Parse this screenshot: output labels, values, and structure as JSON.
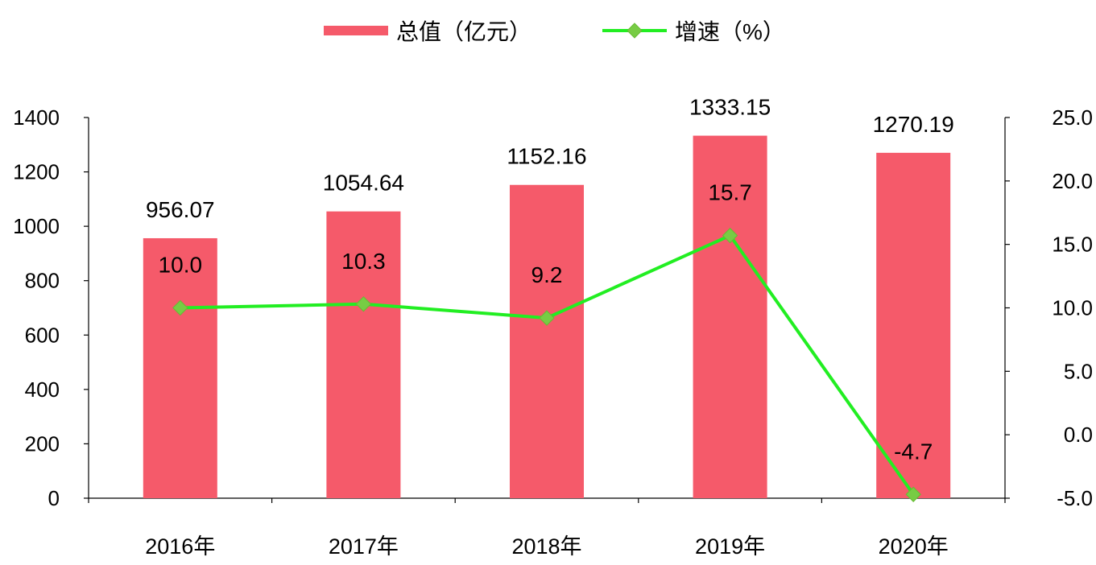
{
  "chart_data": {
    "type": "bar+line",
    "categories": [
      "2016年",
      "2017年",
      "2018年",
      "2019年",
      "2020年"
    ],
    "series": [
      {
        "name": "总值（亿元）",
        "type": "bar",
        "axis": "left",
        "values": [
          956.07,
          1054.64,
          1152.16,
          1333.15,
          1270.19
        ],
        "labels": [
          "956.07",
          "1054.64",
          "1152.16",
          "1333.15",
          "1270.19"
        ],
        "color": "#f55a6a"
      },
      {
        "name": "增速（%）",
        "type": "line",
        "axis": "right",
        "values": [
          10.0,
          10.3,
          9.2,
          15.7,
          -4.7
        ],
        "labels": [
          "10.0",
          "10.3",
          "9.2",
          "15.7",
          "-4.7"
        ],
        "color": "#22ee22",
        "marker": "diamond",
        "marker_color": "#77cc44"
      }
    ],
    "y_left": {
      "range": [
        0,
        1400
      ],
      "ticks": [
        "0",
        "200",
        "400",
        "600",
        "800",
        "1000",
        "1200",
        "1400"
      ]
    },
    "y_right": {
      "range": [
        -5,
        25
      ],
      "ticks": [
        "-5.0",
        "0.0",
        "5.0",
        "10.0",
        "15.0",
        "20.0",
        "25.0"
      ]
    },
    "legend": {
      "placement": "top-center"
    },
    "grid": false
  }
}
